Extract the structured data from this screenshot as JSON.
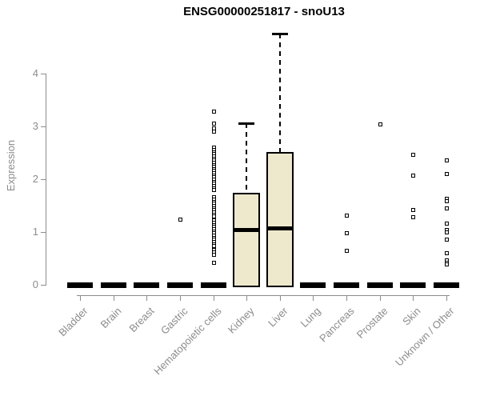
{
  "title": "ENSG00000251817 - snoU13",
  "colors": {
    "box_fill": "#EEE8CD",
    "line": "#000000",
    "axis": "#8C8C8C",
    "background": "#FFFFFF"
  },
  "chart_data": {
    "type": "box",
    "title": "ENSG00000251817 - snoU13",
    "xlabel": "",
    "ylabel": "Expression",
    "ylim": [
      0,
      4.8
    ],
    "yticks": [
      0,
      1,
      2,
      3,
      4
    ],
    "grid": false,
    "legend": false,
    "categories": [
      "Bladder",
      "Brain",
      "Breast",
      "Gastric",
      "Hematopoietic cells",
      "Kidney",
      "Liver",
      "Lung",
      "Pancreas",
      "Prostate",
      "Skin",
      "Unknown / Other"
    ],
    "boxes": [
      {
        "category": "Bladder",
        "whisker_low": 0,
        "q1": 0,
        "median": 0,
        "q3": 0,
        "whisker_high": 0,
        "outliers": []
      },
      {
        "category": "Brain",
        "whisker_low": 0,
        "q1": 0,
        "median": 0,
        "q3": 0,
        "whisker_high": 0,
        "outliers": []
      },
      {
        "category": "Breast",
        "whisker_low": 0,
        "q1": 0,
        "median": 0,
        "q3": 0,
        "whisker_high": 0,
        "outliers": []
      },
      {
        "category": "Gastric",
        "whisker_low": 0,
        "q1": 0,
        "median": 0,
        "q3": 0,
        "whisker_high": 0,
        "outliers": [
          1.24
        ]
      },
      {
        "category": "Hematopoietic cells",
        "whisker_low": 0,
        "q1": 0,
        "median": 0,
        "q3": 0,
        "whisker_high": 0,
        "outliers": [
          3.29,
          3.06,
          2.97,
          2.91,
          2.6,
          2.56,
          2.52,
          2.48,
          2.44,
          2.4,
          2.36,
          2.32,
          2.28,
          2.24,
          2.2,
          2.16,
          2.12,
          2.08,
          2.04,
          2.0,
          1.96,
          1.92,
          1.88,
          1.84,
          1.8,
          1.66,
          1.62,
          1.58,
          1.54,
          1.5,
          1.46,
          1.42,
          1.38,
          1.34,
          1.3,
          1.22,
          1.18,
          1.14,
          1.1,
          1.06,
          1.02,
          0.98,
          0.94,
          0.9,
          0.86,
          0.82,
          0.78,
          0.74,
          0.66,
          0.62,
          0.58,
          0.42
        ]
      },
      {
        "category": "Kidney",
        "whisker_low": 0,
        "q1": 0,
        "median": 1.05,
        "q3": 1.74,
        "whisker_high": 3.06,
        "outliers": []
      },
      {
        "category": "Liver",
        "whisker_low": 0,
        "q1": 0,
        "median": 1.08,
        "q3": 2.52,
        "whisker_high": 4.76,
        "outliers": []
      },
      {
        "category": "Lung",
        "whisker_low": 0,
        "q1": 0,
        "median": 0,
        "q3": 0,
        "whisker_high": 0,
        "outliers": []
      },
      {
        "category": "Pancreas",
        "whisker_low": 0,
        "q1": 0,
        "median": 0,
        "q3": 0,
        "whisker_high": 0,
        "outliers": [
          1.32,
          0.99,
          0.65
        ]
      },
      {
        "category": "Prostate",
        "whisker_low": 0,
        "q1": 0,
        "median": 0,
        "q3": 0,
        "whisker_high": 0,
        "outliers": [
          3.04
        ]
      },
      {
        "category": "Skin",
        "whisker_low": 0,
        "q1": 0,
        "median": 0,
        "q3": 0,
        "whisker_high": 0,
        "outliers": [
          2.47,
          2.07,
          1.43,
          1.29
        ]
      },
      {
        "category": "Unknown / Other",
        "whisker_low": 0,
        "q1": 0,
        "median": 0,
        "q3": 0,
        "whisker_high": 0,
        "outliers": [
          2.36,
          2.11,
          1.63,
          1.59,
          1.45,
          1.16,
          1.05,
          1.0,
          0.87,
          0.61,
          0.47,
          0.43,
          0.39
        ]
      }
    ]
  }
}
